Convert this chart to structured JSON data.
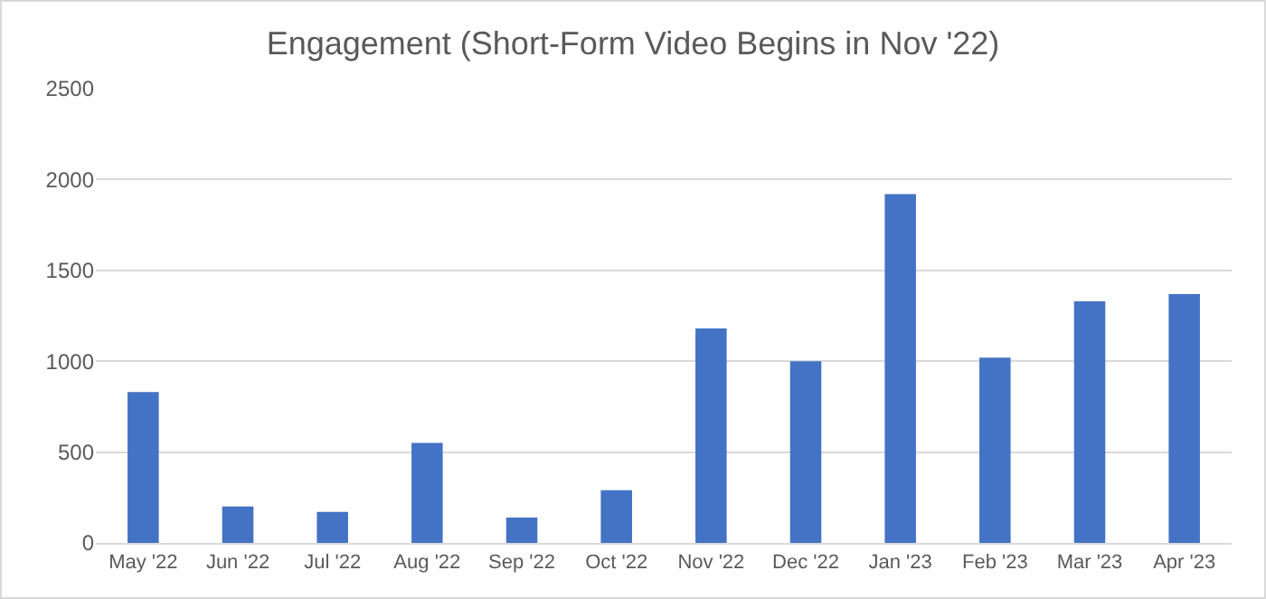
{
  "chart_data": {
    "type": "bar",
    "title": "Engagement (Short-Form Video Begins in Nov '22)",
    "categories": [
      "May '22",
      "Jun '22",
      "Jul '22",
      "Aug '22",
      "Sep '22",
      "Oct '22",
      "Nov '22",
      "Dec '22",
      "Jan '23",
      "Feb '23",
      "Mar '23",
      "Apr '23"
    ],
    "values": [
      830,
      200,
      170,
      550,
      140,
      290,
      1180,
      1000,
      1920,
      1020,
      1330,
      1370
    ],
    "color": "#4472c4",
    "ylim": [
      0,
      2500
    ],
    "yticks": [
      0,
      500,
      1000,
      1500,
      2000,
      2500
    ],
    "grid": "y"
  }
}
